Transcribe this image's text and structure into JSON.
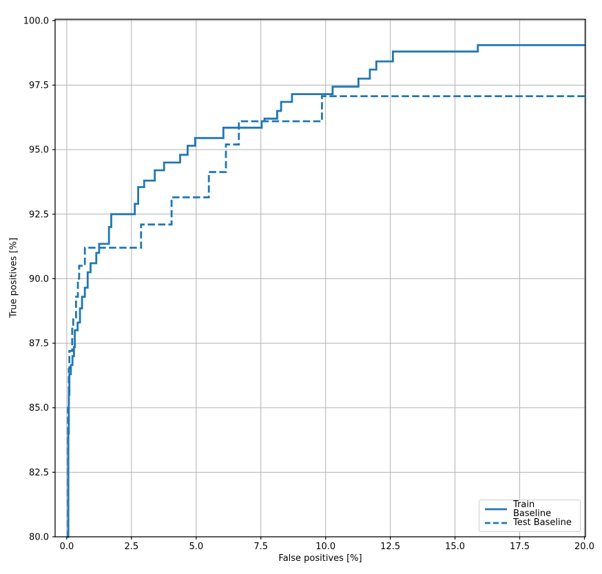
{
  "chart_data": {
    "type": "line",
    "subtype": "step",
    "title": "",
    "xlabel": "False positives [%]",
    "ylabel": "True positives [%]",
    "xlim": [
      -0.45,
      20.04
    ],
    "ylim": [
      80.0,
      100.05
    ],
    "grid": true,
    "x_ticks": {
      "values": [
        0,
        2.5,
        5,
        7.5,
        10,
        12.5,
        15,
        17.5,
        20
      ],
      "labels": [
        "0.0",
        "2.5",
        "5.0",
        "7.5",
        "10.0",
        "12.5",
        "15.0",
        "17.5",
        "20.0"
      ]
    },
    "y_ticks": {
      "values": [
        80,
        82.5,
        85,
        87.5,
        90,
        92.5,
        95,
        97.5,
        100
      ],
      "labels": [
        "80.0",
        "82.5",
        "85.0",
        "87.5",
        "90.0",
        "92.5",
        "95.0",
        "97.5",
        "100.0"
      ]
    },
    "colors": {
      "line": "#1f77b4",
      "grid": "#b0b0b0",
      "spine": "#000000",
      "tick_text": "#000000",
      "legend_border": "#cccccc",
      "background": "#ffffff"
    },
    "legend": {
      "position": "lower right",
      "items": [
        {
          "label": "Train Baseline",
          "dash": "solid"
        },
        {
          "label": "Test Baseline",
          "dash": "dashed"
        }
      ]
    },
    "series": [
      {
        "name": "Train Baseline",
        "style": "solid",
        "line_width": 2.8,
        "x_end": 20.04,
        "step_points": [
          [
            0.03,
            80.0
          ],
          [
            0.06,
            84.0
          ],
          [
            0.08,
            85.5
          ],
          [
            0.1,
            86.3
          ],
          [
            0.16,
            86.65
          ],
          [
            0.22,
            87.0
          ],
          [
            0.28,
            87.35
          ],
          [
            0.31,
            88.0
          ],
          [
            0.42,
            88.3
          ],
          [
            0.51,
            88.85
          ],
          [
            0.59,
            89.3
          ],
          [
            0.7,
            89.65
          ],
          [
            0.81,
            90.25
          ],
          [
            0.92,
            90.6
          ],
          [
            1.14,
            91.0
          ],
          [
            1.25,
            91.35
          ],
          [
            1.63,
            92.0
          ],
          [
            1.72,
            92.5
          ],
          [
            2.63,
            92.9
          ],
          [
            2.76,
            93.55
          ],
          [
            2.99,
            93.8
          ],
          [
            3.4,
            94.2
          ],
          [
            3.76,
            94.5
          ],
          [
            4.38,
            94.8
          ],
          [
            4.67,
            95.15
          ],
          [
            4.96,
            95.45
          ],
          [
            6.05,
            95.85
          ],
          [
            7.53,
            96.1
          ],
          [
            7.64,
            96.2
          ],
          [
            8.13,
            96.5
          ],
          [
            8.28,
            96.85
          ],
          [
            8.7,
            97.15
          ],
          [
            10.27,
            97.44
          ],
          [
            11.27,
            97.75
          ],
          [
            11.71,
            98.1
          ],
          [
            11.96,
            98.42
          ],
          [
            12.6,
            98.8
          ],
          [
            15.88,
            99.05
          ]
        ]
      },
      {
        "name": "Test Baseline",
        "style": "dashed",
        "line_width": 2.8,
        "x_end": 20.04,
        "step_points": [
          [
            0.02,
            80.0
          ],
          [
            0.05,
            85.0
          ],
          [
            0.08,
            86.5
          ],
          [
            0.1,
            87.2
          ],
          [
            0.21,
            88.1
          ],
          [
            0.25,
            88.5
          ],
          [
            0.36,
            89.3
          ],
          [
            0.43,
            90.0
          ],
          [
            0.48,
            90.5
          ],
          [
            0.7,
            91.2
          ],
          [
            2.87,
            92.1
          ],
          [
            4.05,
            93.15
          ],
          [
            5.49,
            94.13
          ],
          [
            6.15,
            95.2
          ],
          [
            6.65,
            96.1
          ],
          [
            9.86,
            97.07
          ]
        ]
      }
    ]
  }
}
